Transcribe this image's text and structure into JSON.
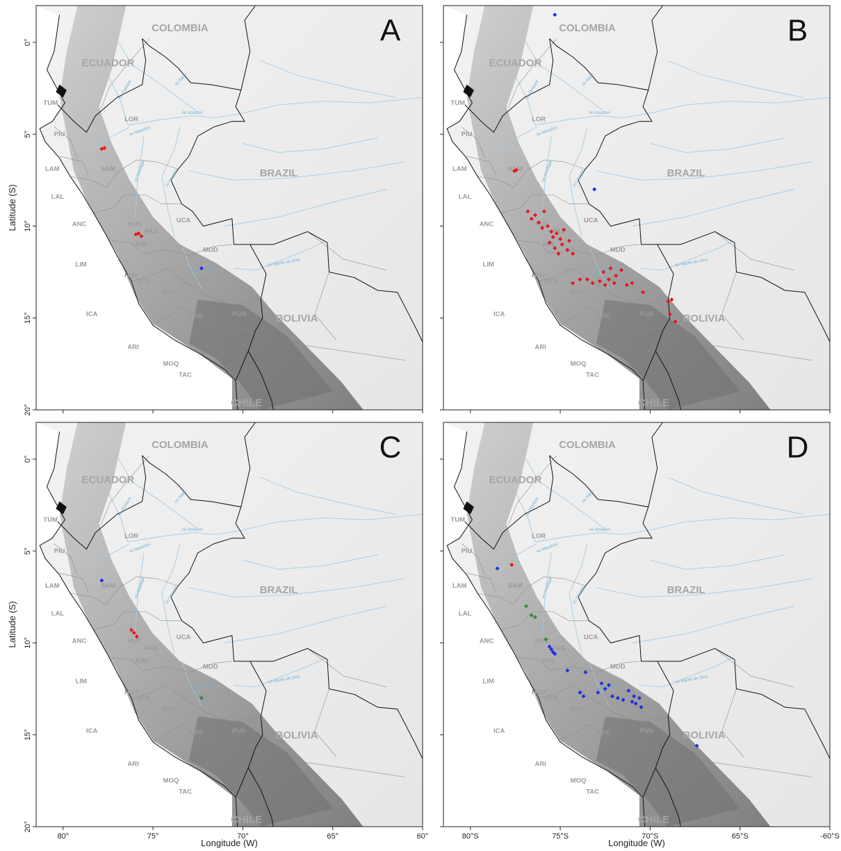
{
  "map": {
    "countries": [
      "COLOMBIA",
      "ECUADOR",
      "BRAZIL",
      "BOLIVIA",
      "CHILE"
    ],
    "departments": [
      "TUM",
      "PIU",
      "LAM",
      "LAL",
      "ANC",
      "LIM",
      "ICA",
      "ARI",
      "MOQ",
      "TAC",
      "LOR",
      "SAM",
      "UCA",
      "PAS",
      "MDD",
      "HUC",
      "JUN",
      "CUS",
      "PUN",
      "AYA",
      "HUV",
      "APU",
      "ARE"
    ],
    "rivers": [
      "rio Napo",
      "rio Pastaza",
      "rio Amazon",
      "rio Marañón",
      "rio Huallaga",
      "rio Ucayali",
      "rio Madre de Dios",
      "rio Urubamba"
    ],
    "colors": {
      "red": "#e8141c",
      "blue": "#1f2fe0",
      "green": "#2a8f3a",
      "border": "#111111",
      "dept_border": "#8c8c8c",
      "river": "#9fcbe8"
    },
    "lat_range": [
      20,
      -2
    ],
    "lon_range": [
      -81.5,
      -60
    ]
  },
  "axes": {
    "ylabel": "Latitude (S)",
    "xlabel": "Longitude (W)",
    "yticks": [
      "0°",
      "5°",
      "10°",
      "15°",
      "20°"
    ],
    "xticks_left": [
      "80°",
      "75°",
      "70°",
      "65°",
      "60°"
    ],
    "xticks_right": [
      "80°S",
      "75°S",
      "70°S",
      "65°S",
      "-60°S"
    ]
  },
  "panels": [
    {
      "letter": "A",
      "points": [
        {
          "lon": -77.7,
          "lat": 5.75,
          "c": "red"
        },
        {
          "lon": -77.85,
          "lat": 5.8,
          "c": "red"
        },
        {
          "lon": -75.8,
          "lat": 10.4,
          "c": "red"
        },
        {
          "lon": -75.65,
          "lat": 10.55,
          "c": "red"
        },
        {
          "lon": -75.95,
          "lat": 10.45,
          "c": "red"
        },
        {
          "lon": -72.3,
          "lat": 12.3,
          "c": "blue"
        }
      ]
    },
    {
      "letter": "B",
      "points": [
        {
          "lon": -75.3,
          "lat": -1.5,
          "c": "blue"
        },
        {
          "lon": -73.1,
          "lat": 8.0,
          "c": "blue"
        },
        {
          "lon": -77.55,
          "lat": 7.0,
          "c": "red"
        },
        {
          "lon": -77.45,
          "lat": 6.95,
          "c": "red"
        },
        {
          "lon": -76.4,
          "lat": 9.4,
          "c": "red"
        },
        {
          "lon": -76.6,
          "lat": 9.6,
          "c": "red"
        },
        {
          "lon": -76.2,
          "lat": 9.8,
          "c": "red"
        },
        {
          "lon": -75.9,
          "lat": 9.2,
          "c": "red"
        },
        {
          "lon": -76.8,
          "lat": 9.2,
          "c": "red"
        },
        {
          "lon": -76.0,
          "lat": 10.1,
          "c": "red"
        },
        {
          "lon": -75.5,
          "lat": 10.3,
          "c": "red"
        },
        {
          "lon": -75.4,
          "lat": 10.6,
          "c": "red"
        },
        {
          "lon": -75.2,
          "lat": 10.4,
          "c": "red"
        },
        {
          "lon": -75.0,
          "lat": 10.7,
          "c": "red"
        },
        {
          "lon": -75.6,
          "lat": 10.9,
          "c": "red"
        },
        {
          "lon": -75.3,
          "lat": 11.2,
          "c": "red"
        },
        {
          "lon": -74.9,
          "lat": 11.0,
          "c": "red"
        },
        {
          "lon": -75.1,
          "lat": 11.5,
          "c": "red"
        },
        {
          "lon": -74.6,
          "lat": 11.3,
          "c": "red"
        },
        {
          "lon": -74.8,
          "lat": 10.2,
          "c": "red"
        },
        {
          "lon": -74.5,
          "lat": 10.8,
          "c": "red"
        },
        {
          "lon": -75.7,
          "lat": 10.0,
          "c": "red"
        },
        {
          "lon": -74.3,
          "lat": 11.5,
          "c": "red"
        },
        {
          "lon": -73.5,
          "lat": 12.9,
          "c": "red"
        },
        {
          "lon": -73.2,
          "lat": 13.1,
          "c": "red"
        },
        {
          "lon": -72.8,
          "lat": 13.0,
          "c": "red"
        },
        {
          "lon": -72.5,
          "lat": 13.2,
          "c": "red"
        },
        {
          "lon": -72.3,
          "lat": 12.9,
          "c": "red"
        },
        {
          "lon": -72.0,
          "lat": 13.1,
          "c": "red"
        },
        {
          "lon": -71.9,
          "lat": 12.7,
          "c": "red"
        },
        {
          "lon": -72.6,
          "lat": 12.5,
          "c": "red"
        },
        {
          "lon": -71.6,
          "lat": 12.4,
          "c": "red"
        },
        {
          "lon": -72.2,
          "lat": 12.3,
          "c": "red"
        },
        {
          "lon": -71.3,
          "lat": 13.2,
          "c": "red"
        },
        {
          "lon": -71.0,
          "lat": 13.1,
          "c": "red"
        },
        {
          "lon": -70.4,
          "lat": 13.6,
          "c": "red"
        },
        {
          "lon": -73.9,
          "lat": 12.9,
          "c": "red"
        },
        {
          "lon": -74.3,
          "lat": 13.1,
          "c": "red"
        },
        {
          "lon": -69.0,
          "lat": 14.1,
          "c": "red"
        },
        {
          "lon": -68.8,
          "lat": 14.0,
          "c": "red"
        },
        {
          "lon": -68.9,
          "lat": 14.8,
          "c": "red"
        },
        {
          "lon": -68.6,
          "lat": 15.2,
          "c": "red"
        }
      ]
    },
    {
      "letter": "C",
      "points": [
        {
          "lon": -77.85,
          "lat": 6.6,
          "c": "blue"
        },
        {
          "lon": -76.2,
          "lat": 9.3,
          "c": "red"
        },
        {
          "lon": -76.05,
          "lat": 9.45,
          "c": "red"
        },
        {
          "lon": -75.9,
          "lat": 9.65,
          "c": "red"
        },
        {
          "lon": -72.3,
          "lat": 13.0,
          "c": "green"
        }
      ]
    },
    {
      "letter": "D",
      "points": [
        {
          "lon": -78.5,
          "lat": 5.95,
          "c": "blue"
        },
        {
          "lon": -77.7,
          "lat": 5.75,
          "c": "red"
        },
        {
          "lon": -76.9,
          "lat": 8.0,
          "c": "green"
        },
        {
          "lon": -76.6,
          "lat": 8.5,
          "c": "green"
        },
        {
          "lon": -76.4,
          "lat": 8.6,
          "c": "green"
        },
        {
          "lon": -75.8,
          "lat": 9.8,
          "c": "green"
        },
        {
          "lon": -75.6,
          "lat": 10.2,
          "c": "blue"
        },
        {
          "lon": -75.5,
          "lat": 10.35,
          "c": "blue"
        },
        {
          "lon": -75.4,
          "lat": 10.5,
          "c": "blue"
        },
        {
          "lon": -75.3,
          "lat": 10.6,
          "c": "blue"
        },
        {
          "lon": -74.6,
          "lat": 11.5,
          "c": "blue"
        },
        {
          "lon": -73.6,
          "lat": 11.6,
          "c": "blue"
        },
        {
          "lon": -73.9,
          "lat": 12.7,
          "c": "blue"
        },
        {
          "lon": -73.7,
          "lat": 12.9,
          "c": "blue"
        },
        {
          "lon": -72.9,
          "lat": 12.7,
          "c": "blue"
        },
        {
          "lon": -72.7,
          "lat": 12.2,
          "c": "blue"
        },
        {
          "lon": -72.5,
          "lat": 12.5,
          "c": "blue"
        },
        {
          "lon": -72.3,
          "lat": 12.3,
          "c": "blue"
        },
        {
          "lon": -72.1,
          "lat": 12.9,
          "c": "blue"
        },
        {
          "lon": -71.8,
          "lat": 13.0,
          "c": "blue"
        },
        {
          "lon": -71.5,
          "lat": 13.1,
          "c": "blue"
        },
        {
          "lon": -71.2,
          "lat": 12.6,
          "c": "blue"
        },
        {
          "lon": -71.0,
          "lat": 13.2,
          "c": "blue"
        },
        {
          "lon": -70.8,
          "lat": 13.3,
          "c": "blue"
        },
        {
          "lon": -70.9,
          "lat": 12.9,
          "c": "blue"
        },
        {
          "lon": -70.6,
          "lat": 13.0,
          "c": "blue"
        },
        {
          "lon": -70.5,
          "lat": 13.5,
          "c": "blue"
        },
        {
          "lon": -67.4,
          "lat": 15.6,
          "c": "blue"
        }
      ]
    }
  ]
}
